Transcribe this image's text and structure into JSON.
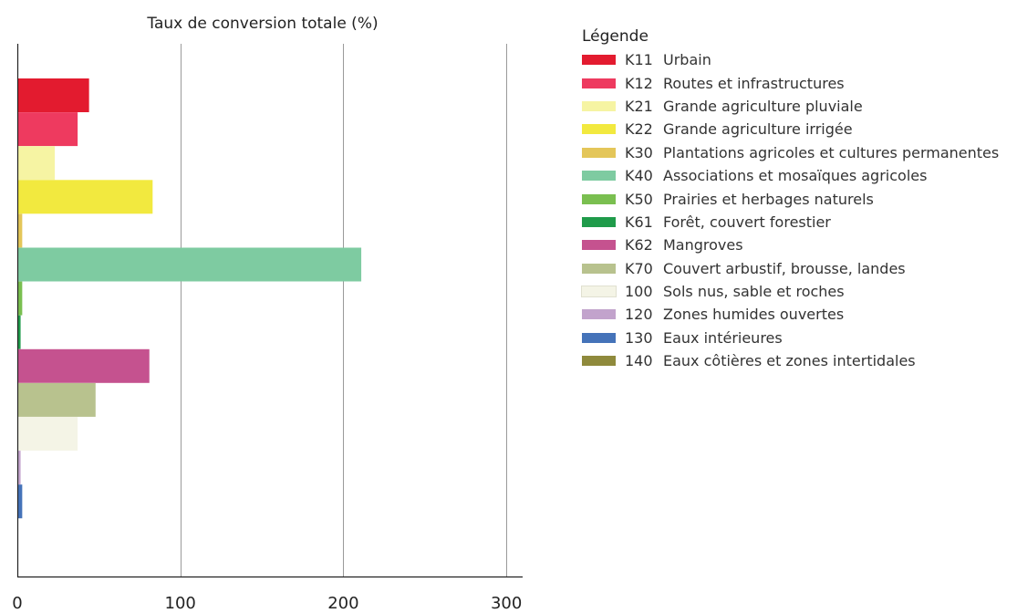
{
  "chart_data": {
    "type": "bar",
    "orientation": "horizontal",
    "title": "Taux de conversion totale (%)",
    "xlabel": "",
    "ylabel": "",
    "xlim": [
      0,
      310
    ],
    "xticks": [
      0,
      100,
      200,
      300
    ],
    "grid": true,
    "legend_position": "right",
    "legend_title": "Légende",
    "categories": [
      {
        "code": "K11",
        "label": "Urbain",
        "value": 44,
        "color": "#e31b2f"
      },
      {
        "code": "K12",
        "label": "Routes et infrastructures",
        "value": 37,
        "color": "#ee3a5f"
      },
      {
        "code": "K21",
        "label": "Grande agriculture pluviale",
        "value": 23,
        "color": "#f6f4a3"
      },
      {
        "code": "K22",
        "label": "Grande agriculture irrigée",
        "value": 83,
        "color": "#f2e93f"
      },
      {
        "code": "K30",
        "label": "Plantations agricoles et cultures permanentes",
        "value": 3,
        "color": "#e4c659"
      },
      {
        "code": "K40",
        "label": "Associations et mosaïques agricoles",
        "value": 211,
        "color": "#7ecba1"
      },
      {
        "code": "K50",
        "label": "Prairies et herbages naturels",
        "value": 3,
        "color": "#7abf50"
      },
      {
        "code": "K61",
        "label": "Forêt, couvert forestier",
        "value": 2,
        "color": "#1f9b4a"
      },
      {
        "code": "K62",
        "label": "Mangroves",
        "value": 81,
        "color": "#c5528f"
      },
      {
        "code": "K70",
        "label": "Couvert arbustif, brousse, landes",
        "value": 48,
        "color": "#b8c28e"
      },
      {
        "code": "100",
        "label": "Sols nus, sable et roches",
        "value": 37,
        "color": "#f4f4e6"
      },
      {
        "code": "120",
        "label": "Zones humides ouvertes",
        "value": 2,
        "color": "#c2a3cc"
      },
      {
        "code": "130",
        "label": "Eaux intérieures",
        "value": 3,
        "color": "#4573b9"
      },
      {
        "code": "140",
        "label": "Eaux côtières et zones intertidales",
        "value": 0,
        "color": "#8f8a3c"
      }
    ]
  },
  "colors": {
    "grid": "#9a9a9a",
    "axis": "#222222"
  }
}
